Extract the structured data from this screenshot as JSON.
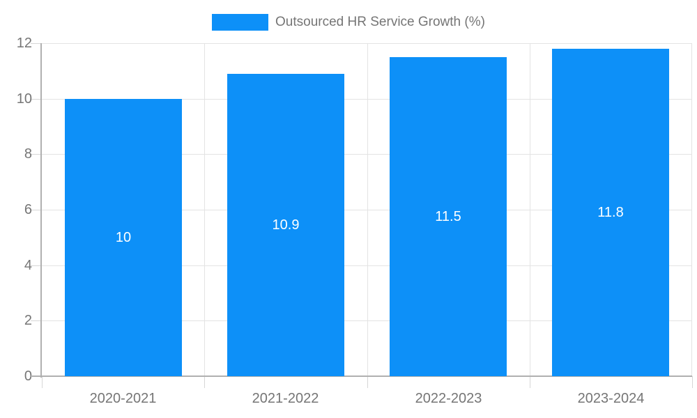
{
  "legend": {
    "label": "Outsourced HR Service Growth (%)"
  },
  "chart_data": {
    "type": "bar",
    "title": "",
    "xlabel": "",
    "ylabel": "",
    "categories": [
      "2020-2021",
      "2021-2022",
      "2022-2023",
      "2023-2024"
    ],
    "series": [
      {
        "name": "Outsourced HR Service Growth (%)",
        "values": [
          10,
          10.9,
          11.5,
          11.8
        ],
        "labels": [
          "10",
          "10.9",
          "11.5",
          "11.8"
        ]
      }
    ],
    "ylim": [
      0,
      12
    ],
    "yticks": [
      0,
      2,
      4,
      6,
      8,
      10,
      12
    ],
    "grid": true,
    "legend_position": "top-center",
    "colors": {
      "bar": "#0d90f8",
      "grid": "#e3e3e3",
      "axis": "#b0b0b0",
      "tick": "#d6d6d6",
      "text": "#757575",
      "bar_label": "#ffffff",
      "background": "#ffffff"
    }
  }
}
